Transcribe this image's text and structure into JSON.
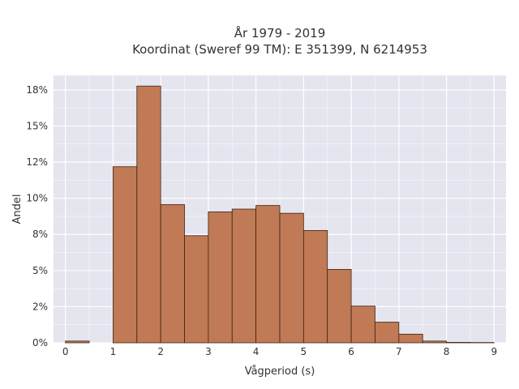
{
  "chart_data": {
    "type": "bar",
    "title": "År 1979 - 2019",
    "subtitle": "Koordinat (Sweref 99 TM): E 351399, N 6214953",
    "xlabel": "Vågperiod (s)",
    "ylabel": "Andel",
    "x_ticks": [
      "0",
      "1",
      "2",
      "3",
      "4",
      "5",
      "6",
      "7",
      "8",
      "9"
    ],
    "y_ticks": [
      "0%",
      "2%",
      "5%",
      "8%",
      "10%",
      "12%",
      "15%",
      "18%"
    ],
    "xlim": [
      -0.25,
      9.25
    ],
    "ylim": [
      0,
      0.185
    ],
    "grid": true,
    "bin_width": 0.5,
    "bins": [
      {
        "x0": 0.0,
        "x1": 0.5,
        "value": 0.0012
      },
      {
        "x0": 0.5,
        "x1": 1.0,
        "value": 0.0
      },
      {
        "x0": 1.0,
        "x1": 1.5,
        "value": 0.1218
      },
      {
        "x0": 1.5,
        "x1": 2.0,
        "value": 0.1776
      },
      {
        "x0": 2.0,
        "x1": 2.5,
        "value": 0.0956
      },
      {
        "x0": 2.5,
        "x1": 3.0,
        "value": 0.0741
      },
      {
        "x0": 3.0,
        "x1": 3.5,
        "value": 0.0906
      },
      {
        "x0": 3.5,
        "x1": 4.0,
        "value": 0.0925
      },
      {
        "x0": 4.0,
        "x1": 4.5,
        "value": 0.095
      },
      {
        "x0": 4.5,
        "x1": 5.0,
        "value": 0.0896
      },
      {
        "x0": 5.0,
        "x1": 5.5,
        "value": 0.0777
      },
      {
        "x0": 5.5,
        "x1": 6.0,
        "value": 0.0508
      },
      {
        "x0": 6.0,
        "x1": 6.5,
        "value": 0.0254
      },
      {
        "x0": 6.5,
        "x1": 7.0,
        "value": 0.0143
      },
      {
        "x0": 7.0,
        "x1": 7.5,
        "value": 0.006
      },
      {
        "x0": 7.5,
        "x1": 8.0,
        "value": 0.0012
      },
      {
        "x0": 8.0,
        "x1": 8.5,
        "value": 0.0003
      },
      {
        "x0": 8.5,
        "x1": 9.0,
        "value": 0.0002
      }
    ],
    "colors": {
      "bar_fill": "#c07a55",
      "bar_stroke": "#3d2414",
      "plot_bg": "#e5e5ef",
      "grid": "#ffffff",
      "text": "#333333"
    }
  }
}
